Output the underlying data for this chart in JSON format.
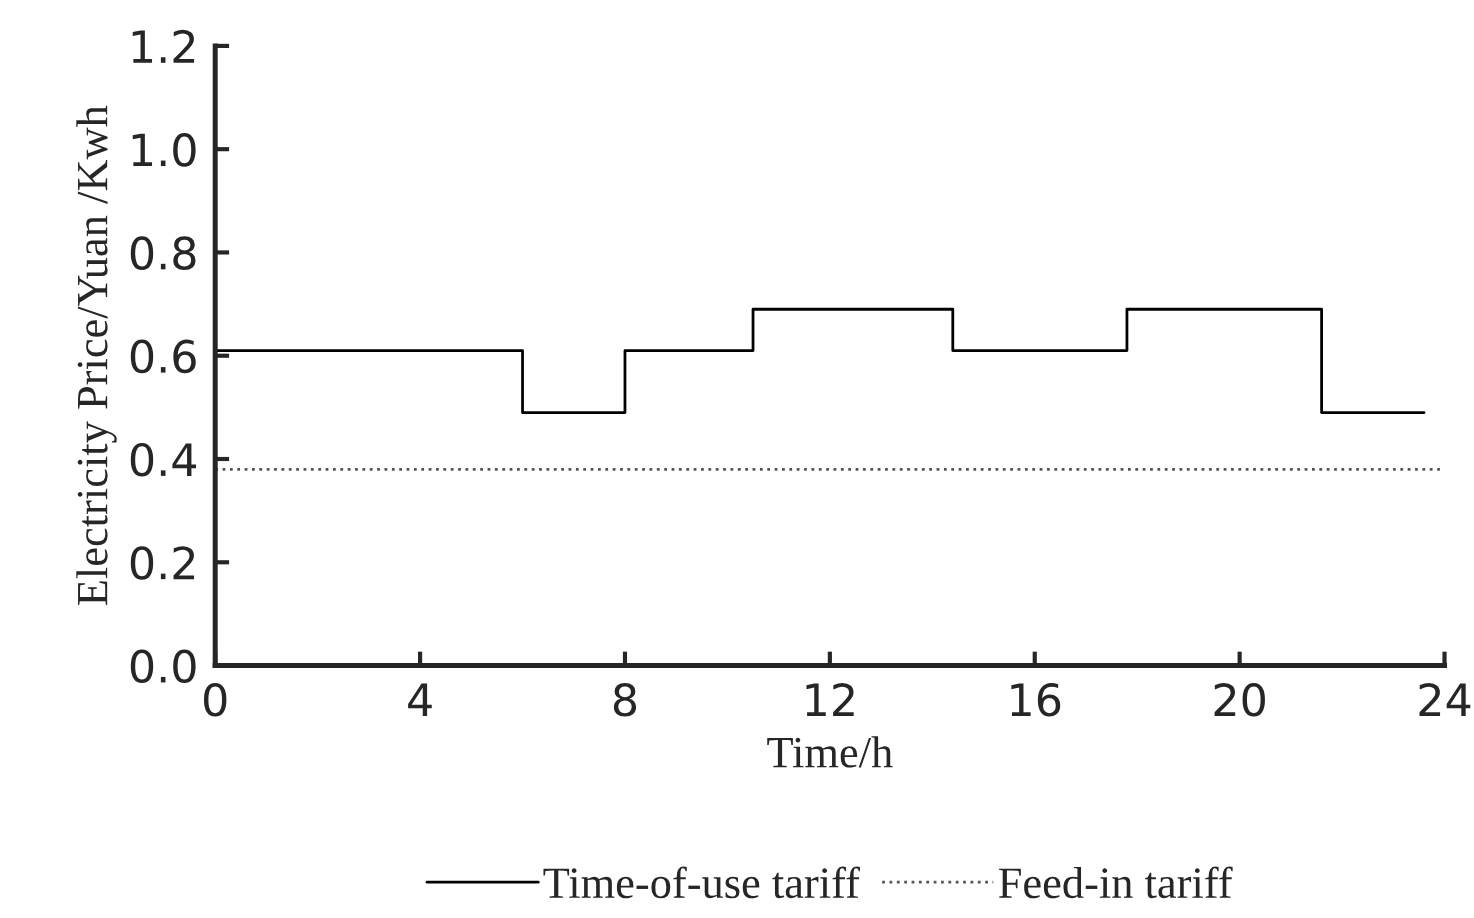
{
  "chart_data": {
    "type": "step",
    "xlabel": "Time/h",
    "ylabel": "Electricity Price/Yuan /Kwh",
    "series": [
      {
        "name": "Time-of-use tariff",
        "color": "#000000",
        "line_style": "solid",
        "x": [
          0,
          6,
          8,
          10.5,
          14.4,
          17.8,
          21.6,
          23.6
        ],
        "values": [
          0.61,
          0.49,
          0.61,
          0.69,
          0.61,
          0.69,
          0.49,
          0.49
        ]
      },
      {
        "name": "Feed-in tariff",
        "type": "line",
        "color": "#555555",
        "line_style": "dotted",
        "x": [
          0,
          24
        ],
        "values": [
          0.38,
          0.38
        ]
      }
    ],
    "xlim": [
      0,
      24
    ],
    "xticks": [
      0,
      4,
      8,
      12,
      16,
      20,
      24
    ],
    "ylim": [
      0.0,
      1.2
    ],
    "yticks": [
      {
        "value": 0,
        "label": "0.0"
      },
      0.2,
      0.4,
      0.6,
      0.8,
      {
        "value": 1,
        "label": "1.0"
      },
      1.2
    ],
    "grid": false,
    "legend": "bottom",
    "marker": "none"
  }
}
